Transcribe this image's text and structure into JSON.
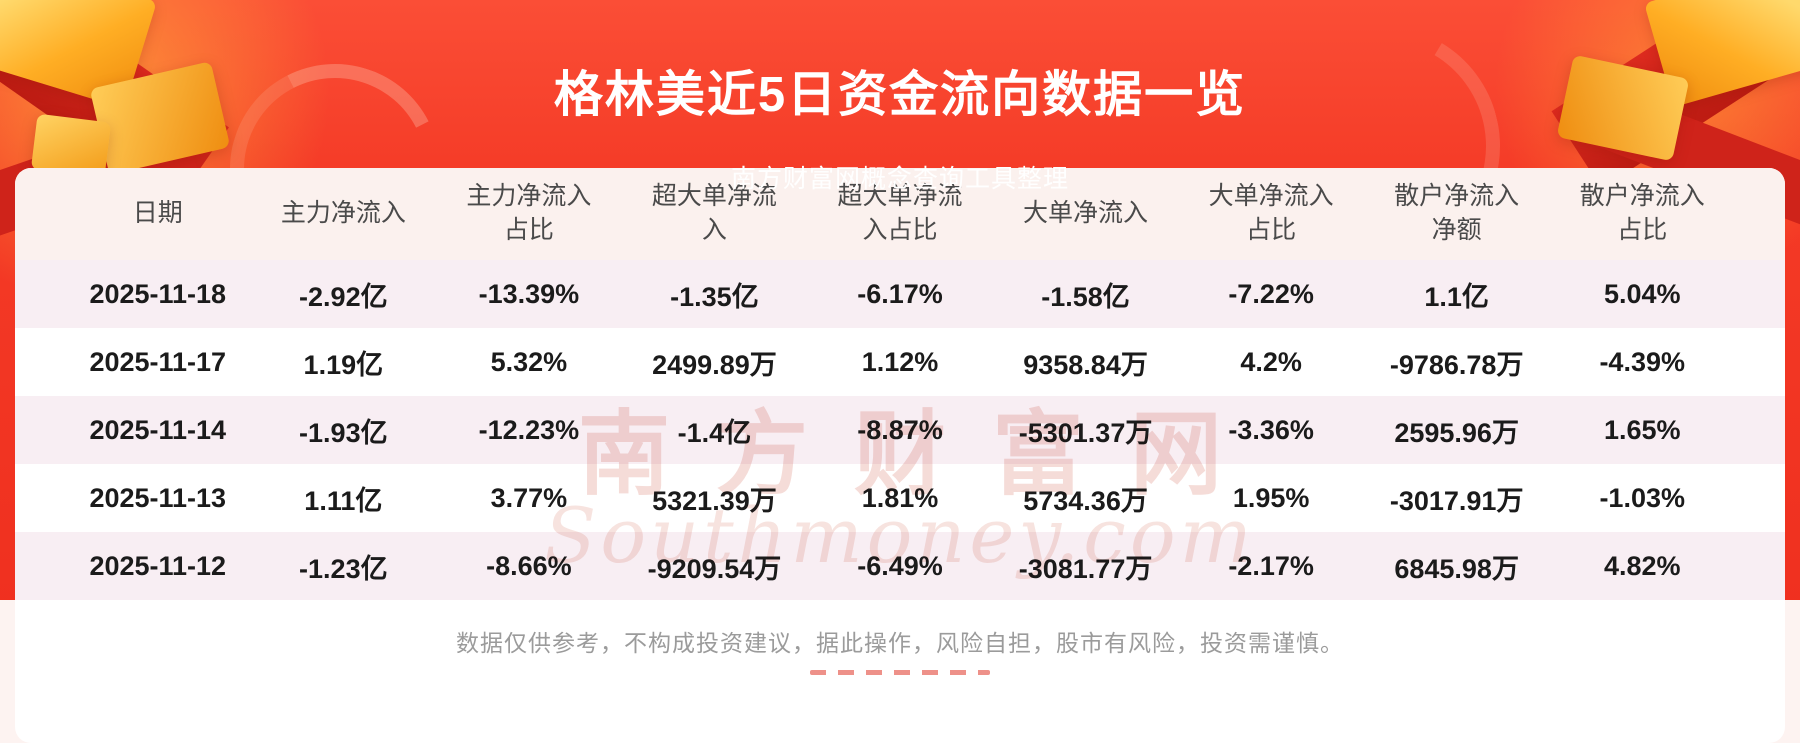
{
  "header": {
    "title": "格林美近5日资金流向数据一览",
    "subtitle": "南方财富网概念查询工具整理"
  },
  "chart_data": {
    "type": "table",
    "title": "格林美近5日资金流向数据一览",
    "columns": [
      "日期",
      "主力净流入",
      "主力净流入占比",
      "超大单净流入",
      "超大单净流入占比",
      "大单净流入",
      "大单净流入占比",
      "散户净流入净额",
      "散户净流入占比"
    ],
    "rows": [
      [
        "2025-11-18",
        "-2.92亿",
        "-13.39%",
        "-1.35亿",
        "-6.17%",
        "-1.58亿",
        "-7.22%",
        "1.1亿",
        "5.04%"
      ],
      [
        "2025-11-17",
        "1.19亿",
        "5.32%",
        "2499.89万",
        "1.12%",
        "9358.84万",
        "4.2%",
        "-9786.78万",
        "-4.39%"
      ],
      [
        "2025-11-14",
        "-1.93亿",
        "-12.23%",
        "-1.4亿",
        "-8.87%",
        "-5301.37万",
        "-3.36%",
        "2595.96万",
        "1.65%"
      ],
      [
        "2025-11-13",
        "1.11亿",
        "3.77%",
        "5321.39万",
        "1.81%",
        "5734.36万",
        "1.95%",
        "-3017.91万",
        "-1.03%"
      ],
      [
        "2025-11-12",
        "-1.23亿",
        "-8.66%",
        "-9209.54万",
        "-6.49%",
        "-3081.77万",
        "-2.17%",
        "6845.98万",
        "4.82%"
      ]
    ]
  },
  "watermark": {
    "cn": "南方财富网",
    "en": "Southmoney.com"
  },
  "footer": {
    "disclaimer": "数据仅供参考，不构成投资建议，据此操作，风险自担，股市有风险，投资需谨慎。"
  },
  "colors": {
    "background_red": "#f43a26",
    "ribbon_red": "#c92016",
    "gold": "#ffb23a",
    "header_row_bg": "#fbf1ee",
    "stripe_row_bg": "#f8eef3",
    "text_dark": "#1b1b1b",
    "header_text": "#4a4a4a",
    "disclaimer_gray": "#9b9b9b",
    "watermark_pink": "#f5dcd8"
  }
}
